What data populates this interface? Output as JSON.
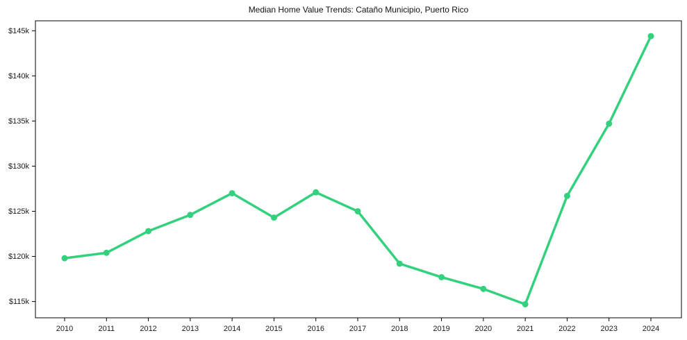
{
  "chart_data": {
    "type": "line",
    "title": "Median Home Value Trends: Cataño Municipio, Puerto Rico",
    "xlabel": "",
    "ylabel": "",
    "grid": false,
    "legend": "none",
    "unit": "USD thousands",
    "x": [
      2010,
      2011,
      2012,
      2013,
      2014,
      2015,
      2016,
      2017,
      2018,
      2019,
      2020,
      2021,
      2022,
      2023,
      2024
    ],
    "series": [
      {
        "name": "Median Home Value",
        "color": "#33d17e",
        "values": [
          119.8,
          120.4,
          122.8,
          124.6,
          127.0,
          124.3,
          127.1,
          125.0,
          119.2,
          117.7,
          116.4,
          114.7,
          126.7,
          134.7,
          144.4
        ]
      }
    ],
    "ylim": [
      113.2,
      146.1
    ],
    "yticks": [
      {
        "value": 115,
        "label": "$115k"
      },
      {
        "value": 120,
        "label": "$120k"
      },
      {
        "value": 125,
        "label": "$125k"
      },
      {
        "value": 130,
        "label": "$130k"
      },
      {
        "value": 135,
        "label": "$135k"
      },
      {
        "value": 140,
        "label": "$140k"
      },
      {
        "value": 145,
        "label": "$145k"
      }
    ],
    "axis_color": "#000000"
  }
}
